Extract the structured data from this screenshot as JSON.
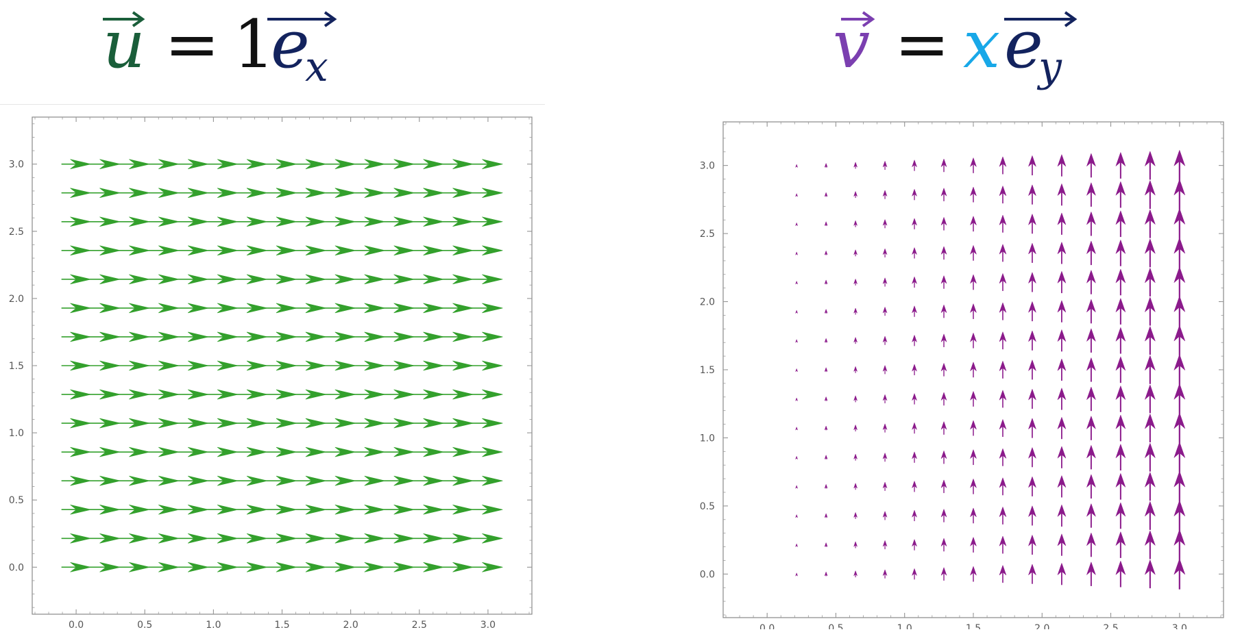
{
  "equations": {
    "left": {
      "vector": "u",
      "equals": "=",
      "coefficient": "1",
      "basis": "e",
      "basis_sub": "x",
      "colors": {
        "vector": "#1a5e3a",
        "coefficient": "#111111",
        "basis": "#13235e"
      }
    },
    "right": {
      "vector": "v",
      "equals": "=",
      "coefficient": "x",
      "basis": "e",
      "basis_sub": "y",
      "colors": {
        "vector": "#7b3fb0",
        "coefficient": "#18a8e8",
        "basis": "#13235e"
      }
    }
  },
  "chart_data": [
    {
      "type": "vector-field",
      "field": "u = (1, 0)",
      "arrow_color": "#33a02c",
      "x_grid": [
        0,
        0.21429,
        0.42857,
        0.64286,
        0.85714,
        1.07143,
        1.28571,
        1.5,
        1.71429,
        1.92857,
        2.14286,
        2.35714,
        2.57143,
        2.78571,
        3.0
      ],
      "y_grid": [
        0,
        0.21429,
        0.42857,
        0.64286,
        0.85714,
        1.07143,
        1.28571,
        1.5,
        1.71429,
        1.92857,
        2.14286,
        2.35714,
        2.57143,
        2.78571,
        3.0
      ],
      "vector": [
        1,
        0
      ],
      "xlim": [
        -0.32,
        3.32
      ],
      "ylim": [
        -0.35,
        3.35
      ],
      "xticks": [
        "0.0",
        "0.5",
        "1.0",
        "1.5",
        "2.0",
        "2.5",
        "3.0"
      ],
      "yticks": [
        "0.0",
        "0.5",
        "1.0",
        "1.5",
        "2.0",
        "2.5",
        "3.0"
      ],
      "xlabel": "",
      "ylabel": "",
      "grid": false
    },
    {
      "type": "vector-field",
      "field": "v = (0, x)",
      "arrow_color": "#8b1a8b",
      "x_grid": [
        0.21429,
        0.42857,
        0.64286,
        0.85714,
        1.07143,
        1.28571,
        1.5,
        1.71429,
        1.92857,
        2.14286,
        2.35714,
        2.57143,
        2.78571,
        3.0
      ],
      "y_grid": [
        0,
        0.21429,
        0.42857,
        0.64286,
        0.85714,
        1.07143,
        1.28571,
        1.5,
        1.71429,
        1.92857,
        2.14286,
        2.35714,
        2.57143,
        2.78571,
        3.0
      ],
      "vector": "[0, x]",
      "xlim": [
        -0.32,
        3.32
      ],
      "ylim": [
        -0.32,
        3.32
      ],
      "xticks": [
        "0.0",
        "0.5",
        "1.0",
        "1.5",
        "2.0",
        "2.5",
        "3.0"
      ],
      "yticks": [
        "0.0",
        "0.5",
        "1.0",
        "1.5",
        "2.0",
        "2.5",
        "3.0"
      ],
      "xlabel": "",
      "ylabel": "",
      "grid": false
    }
  ]
}
